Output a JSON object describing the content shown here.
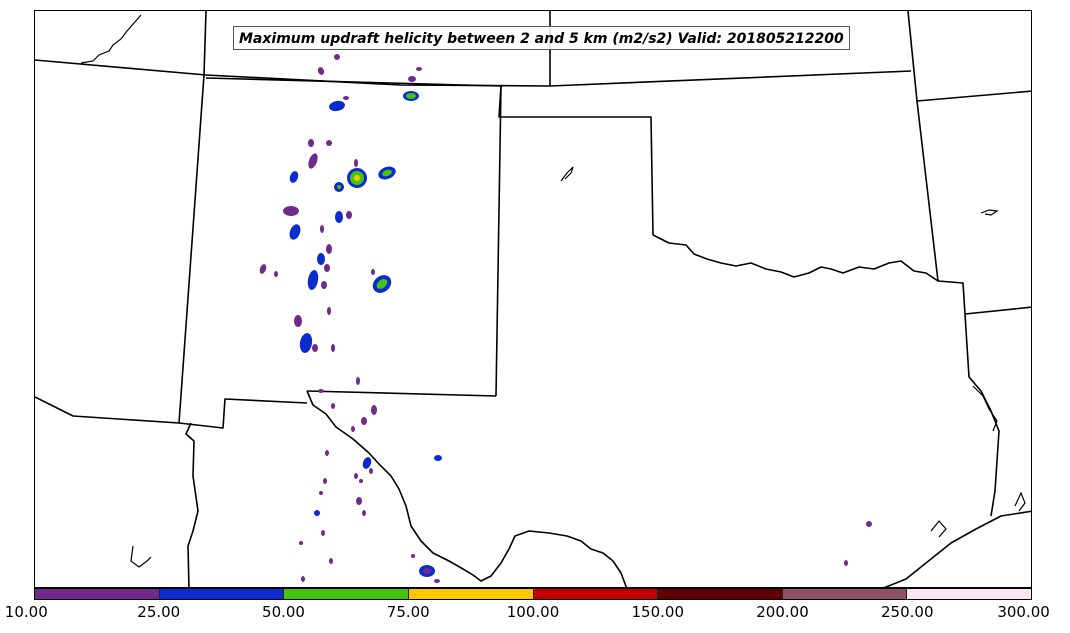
{
  "map": {
    "title": "Maximum updraft helicity between 2 and 5 km (m2/s2) Valid: 201805212200",
    "basemap": "state-boundaries",
    "colors": {
      "boundaries": "#000000",
      "background": "#ffffff"
    }
  },
  "legend": {
    "levels": [
      "10.00",
      "25.00",
      "50.00",
      "75.00",
      "100.00",
      "150.00",
      "200.00",
      "250.00",
      "300.00"
    ],
    "colors": [
      "#702a8c",
      "#0a2ccf",
      "#43c40e",
      "#ffc700",
      "#c40000",
      "#610000",
      "#8c5266",
      "#ffe4f8"
    ]
  }
}
